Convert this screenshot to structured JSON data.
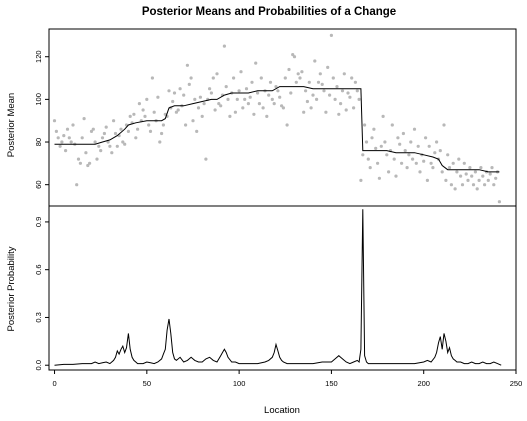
{
  "chart_data": [
    {
      "type": "scatter",
      "title": "Posterior Means and Probabilities of a Change",
      "ylabel": "Posterior Mean",
      "xlim": [
        -3,
        250
      ],
      "ylim": [
        50,
        133
      ],
      "yticks": [
        60,
        80,
        100,
        120
      ],
      "grid": false,
      "colors": {
        "points": "#b8b8b8",
        "line": "#000000"
      },
      "observations": [
        [
          0,
          90
        ],
        [
          1,
          85
        ],
        [
          2,
          82
        ],
        [
          3,
          78
        ],
        [
          4,
          80
        ],
        [
          5,
          83
        ],
        [
          6,
          76
        ],
        [
          7,
          86
        ],
        [
          8,
          82
        ],
        [
          9,
          80
        ],
        [
          10,
          88
        ],
        [
          11,
          79
        ],
        [
          12,
          60
        ],
        [
          13,
          72
        ],
        [
          14,
          70
        ],
        [
          15,
          82
        ],
        [
          16,
          91
        ],
        [
          17,
          75
        ],
        [
          18,
          69
        ],
        [
          19,
          70
        ],
        [
          20,
          85
        ],
        [
          21,
          86
        ],
        [
          22,
          80
        ],
        [
          23,
          72
        ],
        [
          24,
          78
        ],
        [
          25,
          76
        ],
        [
          26,
          82
        ],
        [
          27,
          84
        ],
        [
          28,
          87
        ],
        [
          29,
          80
        ],
        [
          30,
          78
        ],
        [
          31,
          75
        ],
        [
          32,
          90
        ],
        [
          33,
          84
        ],
        [
          34,
          78
        ],
        [
          35,
          83
        ],
        [
          36,
          86
        ],
        [
          37,
          80
        ],
        [
          38,
          79
        ],
        [
          39,
          88
        ],
        [
          40,
          85
        ],
        [
          41,
          92
        ],
        [
          42,
          89
        ],
        [
          43,
          93
        ],
        [
          44,
          82
        ],
        [
          45,
          86
        ],
        [
          46,
          98
        ],
        [
          47,
          90
        ],
        [
          48,
          95
        ],
        [
          49,
          92
        ],
        [
          50,
          100
        ],
        [
          51,
          88
        ],
        [
          52,
          85
        ],
        [
          53,
          110
        ],
        [
          54,
          94
        ],
        [
          55,
          90
        ],
        [
          56,
          101
        ],
        [
          57,
          80
        ],
        [
          58,
          84
        ],
        [
          59,
          88
        ],
        [
          60,
          93
        ],
        [
          61,
          92
        ],
        [
          62,
          104
        ],
        [
          63,
          96
        ],
        [
          64,
          99
        ],
        [
          65,
          103
        ],
        [
          66,
          94
        ],
        [
          67,
          95
        ],
        [
          68,
          105
        ],
        [
          69,
          97
        ],
        [
          70,
          102
        ],
        [
          71,
          88
        ],
        [
          72,
          116
        ],
        [
          73,
          107
        ],
        [
          74,
          110
        ],
        [
          75,
          90
        ],
        [
          76,
          100
        ],
        [
          77,
          85
        ],
        [
          78,
          96
        ],
        [
          79,
          101
        ],
        [
          80,
          92
        ],
        [
          81,
          98
        ],
        [
          82,
          72
        ],
        [
          83,
          100
        ],
        [
          84,
          105
        ],
        [
          85,
          103
        ],
        [
          86,
          110
        ],
        [
          87,
          95
        ],
        [
          88,
          112
        ],
        [
          89,
          98
        ],
        [
          90,
          97
        ],
        [
          91,
          102
        ],
        [
          92,
          125
        ],
        [
          93,
          106
        ],
        [
          94,
          100
        ],
        [
          95,
          92
        ],
        [
          96,
          103
        ],
        [
          97,
          110
        ],
        [
          98,
          94
        ],
        [
          99,
          100
        ],
        [
          100,
          104
        ],
        [
          101,
          113
        ],
        [
          102,
          96
        ],
        [
          103,
          100
        ],
        [
          104,
          105
        ],
        [
          105,
          98
        ],
        [
          106,
          101
        ],
        [
          107,
          108
        ],
        [
          108,
          93
        ],
        [
          109,
          117
        ],
        [
          110,
          103
        ],
        [
          111,
          98
        ],
        [
          112,
          110
        ],
        [
          113,
          96
        ],
        [
          114,
          104
        ],
        [
          115,
          92
        ],
        [
          116,
          102
        ],
        [
          117,
          108
        ],
        [
          118,
          100
        ],
        [
          119,
          98
        ],
        [
          120,
          106
        ],
        [
          121,
          104
        ],
        [
          122,
          101
        ],
        [
          123,
          97
        ],
        [
          124,
          96
        ],
        [
          125,
          110
        ],
        [
          126,
          88
        ],
        [
          127,
          114
        ],
        [
          128,
          103
        ],
        [
          129,
          121
        ],
        [
          130,
          120
        ],
        [
          131,
          108
        ],
        [
          132,
          112
        ],
        [
          133,
          110
        ],
        [
          134,
          113
        ],
        [
          135,
          94
        ],
        [
          136,
          104
        ],
        [
          137,
          99
        ],
        [
          138,
          108
        ],
        [
          139,
          96
        ],
        [
          140,
          102
        ],
        [
          141,
          118
        ],
        [
          142,
          100
        ],
        [
          143,
          108
        ],
        [
          144,
          112
        ],
        [
          145,
          107
        ],
        [
          146,
          104
        ],
        [
          147,
          94
        ],
        [
          148,
          115
        ],
        [
          149,
          102
        ],
        [
          150,
          130
        ],
        [
          151,
          110
        ],
        [
          152,
          100
        ],
        [
          153,
          106
        ],
        [
          154,
          93
        ],
        [
          155,
          98
        ],
        [
          156,
          104
        ],
        [
          157,
          112
        ],
        [
          158,
          95
        ],
        [
          159,
          103
        ],
        [
          160,
          101
        ],
        [
          161,
          110
        ],
        [
          162,
          96
        ],
        [
          163,
          108
        ],
        [
          164,
          104
        ],
        [
          165,
          100
        ],
        [
          166,
          62
        ],
        [
          167,
          74
        ],
        [
          168,
          88
        ],
        [
          169,
          80
        ],
        [
          170,
          72
        ],
        [
          171,
          68
        ],
        [
          172,
          82
        ],
        [
          173,
          86
        ],
        [
          174,
          77
        ],
        [
          175,
          70
        ],
        [
          176,
          63
        ],
        [
          177,
          78
        ],
        [
          178,
          92
        ],
        [
          179,
          80
        ],
        [
          180,
          74
        ],
        [
          181,
          66
        ],
        [
          182,
          76
        ],
        [
          183,
          88
        ],
        [
          184,
          72
        ],
        [
          185,
          64
        ],
        [
          186,
          82
        ],
        [
          187,
          79
        ],
        [
          188,
          70
        ],
        [
          189,
          84
        ],
        [
          190,
          76
        ],
        [
          191,
          68
        ],
        [
          192,
          74
        ],
        [
          193,
          80
        ],
        [
          194,
          72
        ],
        [
          195,
          86
        ],
        [
          196,
          70
        ],
        [
          197,
          78
        ],
        [
          198,
          66
        ],
        [
          199,
          74
        ],
        [
          200,
          71
        ],
        [
          201,
          82
        ],
        [
          202,
          62
        ],
        [
          203,
          78
        ],
        [
          204,
          70
        ],
        [
          205,
          68
        ],
        [
          206,
          75
        ],
        [
          207,
          80
        ],
        [
          208,
          72
        ],
        [
          209,
          76
        ],
        [
          210,
          66
        ],
        [
          211,
          88
        ],
        [
          212,
          62
        ],
        [
          213,
          74
        ],
        [
          214,
          68
        ],
        [
          215,
          60
        ],
        [
          216,
          70
        ],
        [
          217,
          58
        ],
        [
          218,
          66
        ],
        [
          219,
          72
        ],
        [
          220,
          64
        ],
        [
          221,
          60
        ],
        [
          222,
          70
        ],
        [
          223,
          65
        ],
        [
          224,
          62
        ],
        [
          225,
          68
        ],
        [
          226,
          64
        ],
        [
          227,
          60
        ],
        [
          228,
          66
        ],
        [
          229,
          58
        ],
        [
          230,
          62
        ],
        [
          231,
          68
        ],
        [
          232,
          64
        ],
        [
          233,
          60
        ],
        [
          234,
          66
        ],
        [
          235,
          62
        ],
        [
          236,
          65
        ],
        [
          237,
          68
        ],
        [
          238,
          60
        ],
        [
          239,
          63
        ],
        [
          240,
          66
        ],
        [
          241,
          52
        ]
      ],
      "posterior_mean": [
        [
          0,
          79
        ],
        [
          5,
          79
        ],
        [
          10,
          79
        ],
        [
          15,
          79
        ],
        [
          18,
          79
        ],
        [
          22,
          79
        ],
        [
          26,
          80
        ],
        [
          30,
          81
        ],
        [
          34,
          83
        ],
        [
          38,
          86
        ],
        [
          40,
          88
        ],
        [
          44,
          89
        ],
        [
          50,
          90
        ],
        [
          58,
          90
        ],
        [
          60,
          91
        ],
        [
          62,
          96
        ],
        [
          65,
          97
        ],
        [
          70,
          97
        ],
        [
          75,
          98
        ],
        [
          80,
          99
        ],
        [
          85,
          100
        ],
        [
          88,
          100
        ],
        [
          92,
          102
        ],
        [
          96,
          103
        ],
        [
          100,
          103
        ],
        [
          105,
          103
        ],
        [
          110,
          104
        ],
        [
          115,
          104
        ],
        [
          118,
          104
        ],
        [
          122,
          106
        ],
        [
          126,
          106
        ],
        [
          130,
          106
        ],
        [
          135,
          106
        ],
        [
          140,
          105
        ],
        [
          145,
          105
        ],
        [
          150,
          105
        ],
        [
          155,
          105
        ],
        [
          160,
          105
        ],
        [
          165,
          105
        ],
        [
          166,
          105
        ],
        [
          167,
          76
        ],
        [
          170,
          76
        ],
        [
          175,
          76
        ],
        [
          180,
          76
        ],
        [
          185,
          75
        ],
        [
          190,
          75
        ],
        [
          195,
          75
        ],
        [
          200,
          74
        ],
        [
          205,
          73
        ],
        [
          208,
          72
        ],
        [
          210,
          69
        ],
        [
          213,
          67
        ],
        [
          216,
          67
        ],
        [
          220,
          67
        ],
        [
          225,
          67
        ],
        [
          230,
          67
        ],
        [
          235,
          66
        ],
        [
          240,
          66
        ],
        [
          241,
          66
        ]
      ]
    },
    {
      "type": "line",
      "xlabel": "Location",
      "ylabel": "Posterior Probability",
      "xlim": [
        -3,
        250
      ],
      "ylim": [
        -0.03,
        1.0
      ],
      "xticks": [
        0,
        50,
        100,
        150,
        200,
        250
      ],
      "yticks": [
        0.0,
        0.3,
        0.6,
        0.9
      ],
      "grid": false,
      "x": [
        0,
        5,
        10,
        15,
        20,
        22,
        24,
        26,
        28,
        30,
        32,
        33,
        34,
        35,
        36,
        37,
        38,
        39,
        40,
        41,
        42,
        43,
        44,
        45,
        46,
        48,
        50,
        52,
        54,
        56,
        58,
        59,
        60,
        61,
        62,
        63,
        64,
        65,
        66,
        68,
        70,
        72,
        74,
        76,
        78,
        80,
        82,
        84,
        86,
        88,
        90,
        91,
        92,
        93,
        94,
        96,
        98,
        100,
        105,
        110,
        114,
        116,
        118,
        119,
        120,
        121,
        122,
        123,
        124,
        126,
        128,
        130,
        135,
        140,
        145,
        150,
        152,
        154,
        155,
        156,
        158,
        160,
        162,
        164,
        165,
        166,
        167,
        168,
        169,
        170,
        175,
        180,
        185,
        190,
        195,
        200,
        202,
        204,
        206,
        207,
        208,
        209,
        210,
        211,
        212,
        213,
        214,
        215,
        216,
        217,
        218,
        220,
        222,
        224,
        226,
        228,
        230,
        232,
        234,
        236,
        238,
        240,
        242
      ],
      "y": [
        0.0,
        0.005,
        0.005,
        0.01,
        0.01,
        0.02,
        0.01,
        0.015,
        0.02,
        0.01,
        0.03,
        0.05,
        0.09,
        0.07,
        0.1,
        0.12,
        0.08,
        0.11,
        0.2,
        0.1,
        0.05,
        0.03,
        0.02,
        0.01,
        0.01,
        0.01,
        0.02,
        0.015,
        0.01,
        0.02,
        0.04,
        0.07,
        0.1,
        0.22,
        0.29,
        0.2,
        0.08,
        0.04,
        0.03,
        0.05,
        0.02,
        0.03,
        0.05,
        0.03,
        0.02,
        0.02,
        0.04,
        0.05,
        0.03,
        0.02,
        0.06,
        0.08,
        0.1,
        0.08,
        0.05,
        0.02,
        0.02,
        0.01,
        0.01,
        0.01,
        0.02,
        0.03,
        0.05,
        0.08,
        0.13,
        0.09,
        0.05,
        0.03,
        0.02,
        0.01,
        0.01,
        0.01,
        0.01,
        0.01,
        0.02,
        0.02,
        0.04,
        0.06,
        0.05,
        0.04,
        0.02,
        0.01,
        0.02,
        0.03,
        0.02,
        0.1,
        0.98,
        0.06,
        0.02,
        0.01,
        0.01,
        0.01,
        0.01,
        0.01,
        0.01,
        0.02,
        0.03,
        0.02,
        0.05,
        0.08,
        0.14,
        0.18,
        0.1,
        0.2,
        0.15,
        0.08,
        0.11,
        0.06,
        0.04,
        0.03,
        0.02,
        0.02,
        0.01,
        0.01,
        0.02,
        0.01,
        0.01,
        0.02,
        0.01,
        0.01,
        0.02,
        0.01,
        0.0
      ]
    }
  ]
}
